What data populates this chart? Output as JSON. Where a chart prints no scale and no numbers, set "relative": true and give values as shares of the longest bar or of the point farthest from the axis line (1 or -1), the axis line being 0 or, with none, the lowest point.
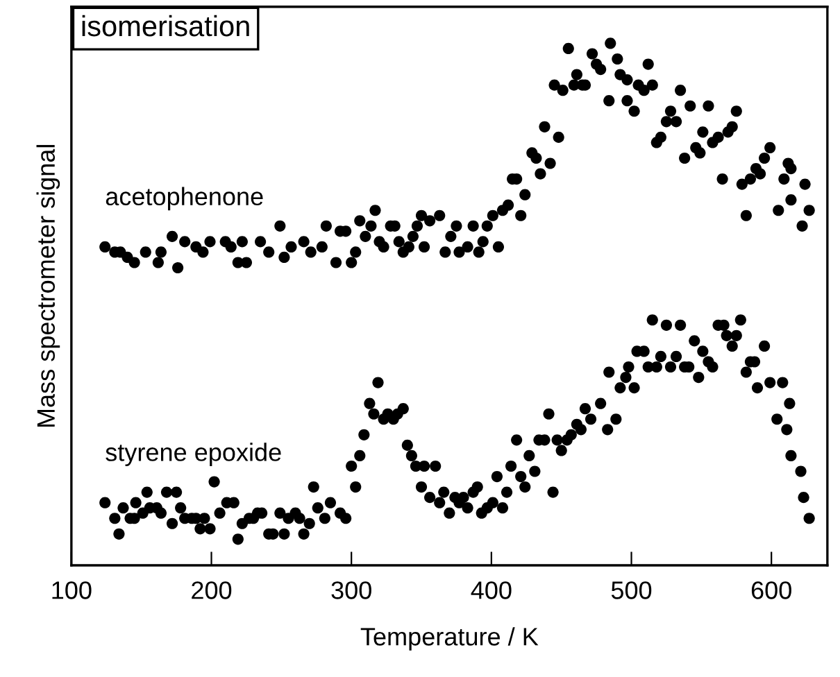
{
  "chart_data": {
    "type": "scatter",
    "title": "isomerisation",
    "xlabel": "Temperature / K",
    "ylabel": "Mass spectrometer signal",
    "relative": true,
    "marker": "circle",
    "grid": false,
    "legend": false,
    "xlim": [
      100,
      640
    ],
    "xticks": [
      100,
      200,
      300,
      400,
      500,
      600
    ],
    "series": [
      {
        "name": "acetophenone",
        "color": "#000000",
        "x": [
          124,
          131,
          135,
          140,
          145,
          153,
          162,
          164,
          172,
          176,
          181,
          189,
          194,
          199,
          210,
          214,
          219,
          222,
          225,
          235,
          241,
          249,
          252,
          257,
          266,
          271,
          279,
          282,
          289,
          292,
          296,
          300,
          303,
          306,
          310,
          314,
          317,
          320,
          323,
          328,
          331,
          334,
          337,
          341,
          344,
          347,
          350,
          352,
          356,
          363,
          367,
          371,
          375,
          377,
          383,
          387,
          391,
          394,
          397,
          401,
          405,
          408,
          412,
          415,
          418,
          421,
          424,
          429,
          432,
          435,
          442,
          438,
          448,
          445,
          451,
          455,
          459,
          461,
          465,
          467,
          472,
          475,
          478,
          484,
          485,
          490,
          492,
          497,
          497,
          502,
          505,
          509,
          512,
          515,
          518,
          521,
          525,
          528,
          532,
          535,
          538,
          542,
          546,
          549,
          551,
          555,
          558,
          562,
          565,
          569,
          572,
          575,
          579,
          582,
          585,
          589,
          592,
          595,
          599,
          605,
          609,
          612,
          614,
          614,
          622,
          624,
          627
        ],
        "values": [
          0.61,
          0.6,
          0.6,
          0.59,
          0.58,
          0.6,
          0.58,
          0.6,
          0.63,
          0.57,
          0.62,
          0.61,
          0.6,
          0.62,
          0.62,
          0.61,
          0.58,
          0.62,
          0.58,
          0.62,
          0.6,
          0.65,
          0.59,
          0.61,
          0.62,
          0.6,
          0.61,
          0.65,
          0.58,
          0.64,
          0.64,
          0.58,
          0.6,
          0.66,
          0.63,
          0.65,
          0.68,
          0.62,
          0.61,
          0.65,
          0.65,
          0.62,
          0.6,
          0.61,
          0.63,
          0.65,
          0.67,
          0.61,
          0.66,
          0.67,
          0.6,
          0.63,
          0.65,
          0.6,
          0.61,
          0.65,
          0.6,
          0.62,
          0.65,
          0.67,
          0.61,
          0.68,
          0.69,
          0.74,
          0.74,
          0.67,
          0.71,
          0.79,
          0.78,
          0.75,
          0.77,
          0.84,
          0.82,
          0.92,
          0.91,
          0.99,
          0.92,
          0.94,
          0.92,
          0.92,
          0.98,
          0.96,
          0.95,
          0.89,
          1.0,
          0.97,
          0.94,
          0.93,
          0.89,
          0.87,
          0.92,
          0.91,
          0.96,
          0.92,
          0.81,
          0.82,
          0.85,
          0.87,
          0.85,
          0.91,
          0.78,
          0.88,
          0.8,
          0.79,
          0.83,
          0.88,
          0.81,
          0.82,
          0.74,
          0.83,
          0.84,
          0.87,
          0.73,
          0.67,
          0.74,
          0.76,
          0.75,
          0.78,
          0.8,
          0.68,
          0.74,
          0.77,
          0.76,
          0.7,
          0.65,
          0.73,
          0.68
        ]
      },
      {
        "name": "styrene epoxide",
        "color": "#000000",
        "x": [
          124,
          131,
          134,
          137,
          142,
          145,
          146,
          151,
          154,
          156,
          161,
          164,
          168,
          172,
          175,
          178,
          181,
          186,
          189,
          192,
          195,
          199,
          202,
          206,
          211,
          216,
          219,
          222,
          227,
          230,
          233,
          236,
          241,
          244,
          249,
          252,
          255,
          260,
          263,
          266,
          270,
          273,
          276,
          281,
          285,
          292,
          296,
          300,
          303,
          306,
          309,
          313,
          316,
          319,
          323,
          326,
          330,
          333,
          337,
          340,
          343,
          346,
          350,
          352,
          356,
          360,
          363,
          366,
          370,
          374,
          377,
          380,
          383,
          387,
          390,
          393,
          397,
          401,
          404,
          408,
          411,
          414,
          418,
          421,
          424,
          427,
          431,
          434,
          438,
          441,
          444,
          447,
          450,
          454,
          457,
          461,
          464,
          467,
          471,
          478,
          483,
          484,
          489,
          492,
          496,
          498,
          502,
          504,
          509,
          512,
          515,
          518,
          521,
          525,
          528,
          532,
          535,
          538,
          541,
          545,
          548,
          551,
          555,
          558,
          562,
          566,
          568,
          572,
          575,
          578,
          582,
          585,
          588,
          590,
          595,
          599,
          604,
          608,
          611,
          613,
          614,
          621,
          623,
          627
        ],
        "values": [
          0.12,
          0.09,
          0.06,
          0.11,
          0.09,
          0.09,
          0.12,
          0.1,
          0.14,
          0.11,
          0.11,
          0.1,
          0.14,
          0.08,
          0.14,
          0.11,
          0.09,
          0.09,
          0.09,
          0.07,
          0.09,
          0.07,
          0.16,
          0.1,
          0.12,
          0.12,
          0.05,
          0.08,
          0.09,
          0.09,
          0.1,
          0.1,
          0.06,
          0.06,
          0.1,
          0.06,
          0.09,
          0.1,
          0.09,
          0.06,
          0.08,
          0.15,
          0.11,
          0.09,
          0.12,
          0.1,
          0.09,
          0.19,
          0.15,
          0.21,
          0.25,
          0.31,
          0.29,
          0.35,
          0.28,
          0.29,
          0.28,
          0.29,
          0.3,
          0.23,
          0.21,
          0.19,
          0.15,
          0.19,
          0.13,
          0.19,
          0.12,
          0.14,
          0.1,
          0.13,
          0.12,
          0.13,
          0.11,
          0.14,
          0.15,
          0.1,
          0.11,
          0.12,
          0.17,
          0.11,
          0.14,
          0.19,
          0.24,
          0.17,
          0.15,
          0.21,
          0.18,
          0.24,
          0.24,
          0.29,
          0.14,
          0.24,
          0.22,
          0.24,
          0.25,
          0.27,
          0.26,
          0.3,
          0.28,
          0.31,
          0.26,
          0.37,
          0.28,
          0.34,
          0.36,
          0.38,
          0.34,
          0.41,
          0.41,
          0.38,
          0.47,
          0.38,
          0.4,
          0.46,
          0.38,
          0.4,
          0.46,
          0.38,
          0.38,
          0.43,
          0.36,
          0.41,
          0.39,
          0.38,
          0.46,
          0.46,
          0.44,
          0.42,
          0.44,
          0.47,
          0.37,
          0.39,
          0.39,
          0.34,
          0.42,
          0.35,
          0.28,
          0.35,
          0.26,
          0.31,
          0.21,
          0.18,
          0.13,
          0.09
        ]
      }
    ]
  }
}
